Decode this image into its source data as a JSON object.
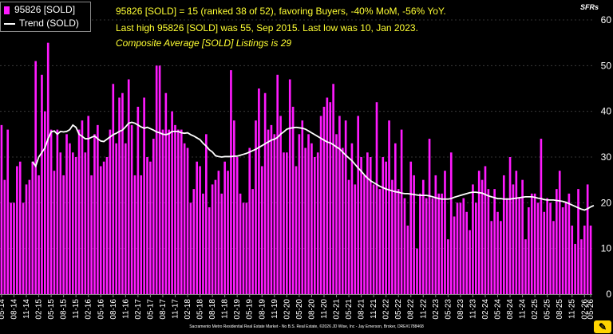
{
  "chart_data": {
    "type": "bar",
    "units_label": "SFRs",
    "ylim": [
      0,
      60
    ],
    "yticks": [
      0,
      10,
      20,
      30,
      40,
      50,
      60
    ],
    "series": [
      {
        "name": "95826 [SOLD]",
        "type": "bar",
        "color": "#ff1aff",
        "values": [
          37,
          25,
          36,
          20,
          20,
          28,
          29,
          20,
          24,
          25,
          29,
          51,
          26,
          48,
          40,
          55,
          36,
          27,
          36,
          31,
          26,
          35,
          33,
          31,
          30,
          36,
          38,
          31,
          39,
          26,
          35,
          37,
          28,
          29,
          30,
          36,
          46,
          33,
          43,
          44,
          33,
          47,
          37,
          26,
          41,
          26,
          43,
          30,
          29,
          34,
          50,
          50,
          36,
          44,
          36,
          40,
          37,
          36,
          36,
          33,
          32,
          20,
          23,
          29,
          28,
          22,
          35,
          19,
          24,
          25,
          27,
          22,
          29,
          27,
          49,
          38,
          30,
          22,
          20,
          20,
          32,
          23,
          38,
          45,
          28,
          44,
          36,
          37,
          35,
          48,
          39,
          31,
          31,
          47,
          41,
          28,
          35,
          38,
          32,
          35,
          33,
          30,
          31,
          39,
          41,
          43,
          42,
          46,
          35,
          39,
          32,
          38,
          25,
          33,
          24,
          39,
          30,
          26,
          31,
          30,
          24,
          42,
          23,
          30,
          29,
          38,
          25,
          33,
          23,
          36,
          21,
          15,
          29,
          26,
          10,
          22,
          25,
          21,
          34,
          21,
          26,
          22,
          22,
          27,
          12,
          31,
          17,
          20,
          20,
          21,
          18,
          14,
          24,
          20,
          27,
          25,
          28,
          23,
          16,
          23,
          18,
          16,
          26,
          21,
          30,
          24,
          27,
          21,
          25,
          12,
          19,
          22,
          22,
          20,
          34,
          18,
          21,
          20,
          16,
          23,
          27,
          19,
          20,
          22,
          15,
          11,
          23,
          12,
          15,
          24,
          15
        ]
      },
      {
        "name": "Trend (SOLD)",
        "type": "line",
        "color": "#ffffff",
        "values": [
          null,
          null,
          null,
          null,
          null,
          null,
          null,
          null,
          null,
          null,
          29,
          28,
          30,
          31,
          32,
          34,
          35.5,
          35.7,
          35,
          35.6,
          35.5,
          35.6,
          36,
          37,
          36.5,
          35,
          34.5,
          34,
          34,
          34.3,
          34.6,
          34,
          33.5,
          33.4,
          33.9,
          34.4,
          34.9,
          35.2,
          35.6,
          35.9,
          36.6,
          37.4,
          37.6,
          37.4,
          37,
          36.6,
          36.3,
          36.5,
          36.2,
          35.9,
          35.5,
          35.3,
          35,
          34.9,
          35.1,
          35.6,
          35.6,
          35.6,
          35.3,
          35.2,
          35.3,
          34.9,
          34.6,
          34.2,
          33.8,
          33,
          32.4,
          31.6,
          31.1,
          30.3,
          30.1,
          30,
          30.1,
          30.1,
          30.1,
          30.2,
          30.2,
          30.4,
          30.6,
          30.8,
          31.1,
          31.4,
          31.7,
          32.1,
          32.5,
          32.9,
          33.3,
          33.7,
          33.9,
          34.3,
          35,
          35.5,
          36.1,
          36.3,
          36.4,
          36.5,
          36.4,
          36.3,
          36.1,
          35.7,
          35.3,
          34.9,
          34.5,
          34.1,
          33.7,
          33.3,
          33.1,
          32.7,
          32.2,
          31.8,
          31.1,
          30.4,
          29.8,
          29.2,
          28.4,
          27.6,
          26.9,
          26.1,
          25.4,
          24.8,
          24.4,
          24,
          23.6,
          23.3,
          23,
          22.8,
          22.6,
          22.4,
          22.3,
          22.1,
          22,
          22,
          21.9,
          21.8,
          21.7,
          21.6,
          21.6,
          21.6,
          21.5,
          21.3,
          21.1,
          20.9,
          20.8,
          20.8,
          20.8,
          20.9,
          21.2,
          21.4,
          21.6,
          21.8,
          22,
          22.2,
          22.3,
          22.3,
          22.2,
          22.1,
          21.8,
          21.5,
          21.3,
          21.1,
          20.9,
          20.9,
          20.8,
          20.8,
          20.8,
          20.9,
          21,
          21.1,
          21.2,
          21.3,
          21.3,
          21.3,
          21.2,
          21,
          20.9,
          20.7,
          20.6,
          20.6,
          20.6,
          20.5,
          20.4,
          20.3,
          20.1,
          19.8,
          19.5,
          19.2,
          18.9,
          18.6,
          18.4,
          18.7,
          19.1,
          19.4
        ]
      }
    ],
    "x_tick_labels": [
      "05-14",
      "08-14",
      "11-14",
      "02-15",
      "05-15",
      "08-15",
      "11-15",
      "02-16",
      "05-16",
      "08-16",
      "11-16",
      "02-17",
      "05-17",
      "08-17",
      "11-17",
      "02-18",
      "05-18",
      "08-18",
      "11-18",
      "02-19",
      "05-19",
      "08-19",
      "11-19",
      "02-20",
      "05-20",
      "08-20",
      "11-20",
      "02-21",
      "05-21",
      "08-21",
      "11-21",
      "02-22",
      "05-22",
      "08-22",
      "11-22",
      "02-23",
      "05-23",
      "08-23",
      "11-23",
      "02-24",
      "05-24",
      "08-24",
      "11-24",
      "02-25",
      "05-25",
      "08-25",
      "11-25",
      "02-26",
      "05-26"
    ],
    "legend_position": "top-left"
  },
  "annotations": {
    "line1": "95826 [SOLD] = 15 (ranked 38 of 52), favoring Buyers, -40% MoM, -56% YoY.",
    "line2": "Last high 95826 [SOLD] was 55, Sep 2015. Last low was 10, Jan 2023.",
    "line3": "Composite Average [SOLD] Listings is 29"
  },
  "footer_text": "Sacramento Metro Residential Real Estate Market - No B.S. Real Estate, ©2026 JD Wise, Inc - Jay Emerson, Broker, DRE#1788468"
}
